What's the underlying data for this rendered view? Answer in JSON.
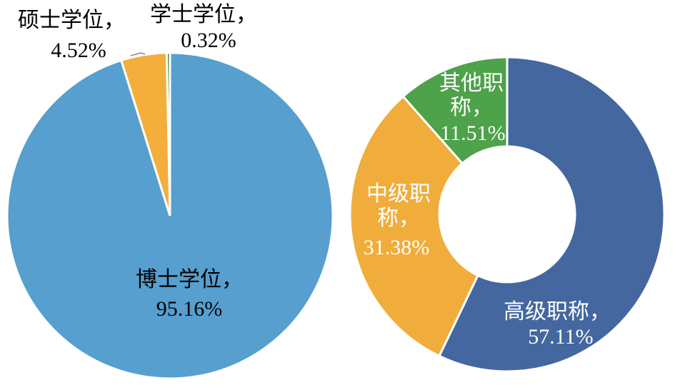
{
  "chart_data": [
    {
      "type": "pie",
      "categories": [
        "博士学位，",
        "硕士学位，",
        "学士学位，"
      ],
      "values": [
        95.16,
        4.52,
        0.32
      ],
      "value_labels": [
        "95.16%",
        "4.52%",
        "0.32%"
      ],
      "colors": [
        "#569fcf",
        "#f3ae3c",
        "#3e8f3c"
      ]
    },
    {
      "type": "donut",
      "categories": [
        "高级职称，",
        "中级职称，",
        "其他职称，"
      ],
      "values": [
        57.11,
        31.38,
        11.51
      ],
      "value_labels": [
        "57.11%",
        "31.38%",
        "11.51%"
      ],
      "colors": [
        "#44679f",
        "#f0ad3c",
        "#4ea24a"
      ]
    }
  ]
}
